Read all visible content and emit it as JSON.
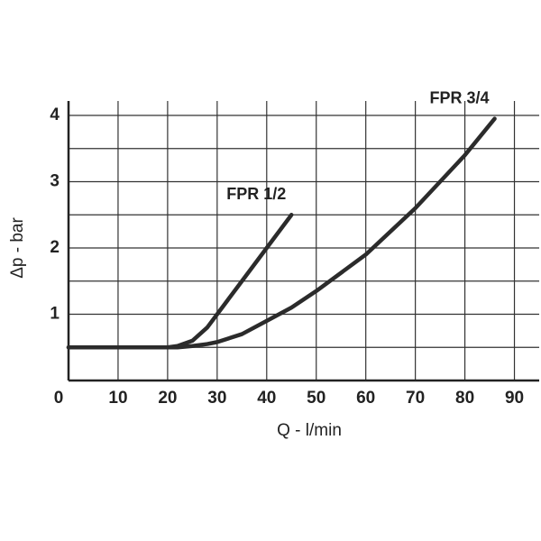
{
  "chart_data": {
    "type": "line",
    "x_label": "Q - l/min",
    "y_label": "Δp - bar",
    "x": [
      0,
      10,
      20,
      22,
      25,
      28,
      30,
      35,
      40,
      45,
      50,
      60,
      70,
      80,
      86
    ],
    "series": [
      {
        "name": "FPR 1/2",
        "color": "#2b2b2b",
        "values": [
          0.5,
          0.5,
          0.5,
          0.52,
          0.6,
          0.8,
          1.0,
          1.5,
          2.0,
          2.5,
          null,
          null,
          null,
          null,
          null
        ]
      },
      {
        "name": "FPR 3/4",
        "color": "#2b2b2b",
        "values": [
          0.5,
          0.5,
          0.5,
          0.5,
          0.52,
          0.55,
          0.58,
          0.7,
          0.9,
          1.1,
          1.35,
          1.9,
          2.6,
          3.4,
          3.95
        ]
      }
    ],
    "xlim": [
      0,
      95
    ],
    "ylim": [
      0,
      4
    ],
    "xticks": [
      0,
      10,
      20,
      30,
      40,
      50,
      60,
      70,
      80,
      90
    ],
    "yticks": [
      1,
      2,
      3,
      4
    ],
    "ygrid": [
      0,
      0.5,
      1,
      1.5,
      2,
      2.5,
      3,
      3.5,
      4
    ],
    "grid": true
  }
}
